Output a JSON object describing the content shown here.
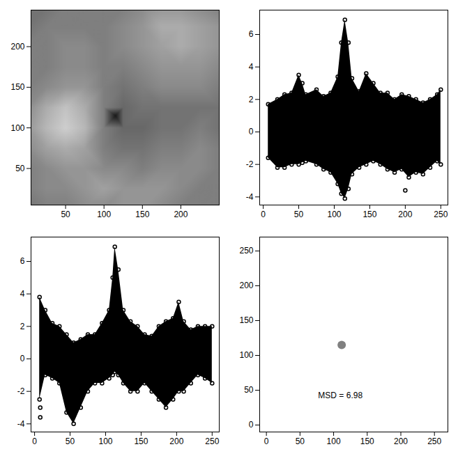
{
  "chart_data": [
    {
      "type": "image",
      "xlim": [
        5,
        250
      ],
      "ylim": [
        5,
        245
      ],
      "xticks": [
        50,
        100,
        150,
        200
      ],
      "yticks": [
        50,
        100,
        150,
        200
      ],
      "zlim": [
        0,
        1
      ],
      "colors": [
        "#0d0d0d",
        "#f0f0f0"
      ],
      "grid_x": [
        0,
        25,
        50,
        75,
        100,
        125,
        150,
        175,
        200,
        225,
        250
      ],
      "grid_y": [
        0,
        25,
        50,
        75,
        100,
        125,
        150,
        175,
        200,
        225,
        250
      ],
      "brightness": [
        [
          0.45,
          0.5,
          0.5,
          0.55,
          0.55,
          0.6,
          0.6,
          0.55,
          0.5,
          0.5,
          0.5
        ],
        [
          0.5,
          0.55,
          0.55,
          0.6,
          0.65,
          0.6,
          0.6,
          0.6,
          0.55,
          0.5,
          0.5
        ],
        [
          0.5,
          0.55,
          0.6,
          0.6,
          0.55,
          0.55,
          0.5,
          0.55,
          0.55,
          0.55,
          0.5
        ],
        [
          0.55,
          0.65,
          0.7,
          0.65,
          0.5,
          0.45,
          0.45,
          0.5,
          0.5,
          0.55,
          0.5
        ],
        [
          0.6,
          0.75,
          0.85,
          0.75,
          0.5,
          0.4,
          0.4,
          0.45,
          0.45,
          0.5,
          0.45
        ],
        [
          0.55,
          0.7,
          0.8,
          0.7,
          0.5,
          0.4,
          0.45,
          0.45,
          0.45,
          0.45,
          0.45
        ],
        [
          0.5,
          0.55,
          0.6,
          0.6,
          0.5,
          0.45,
          0.5,
          0.55,
          0.55,
          0.55,
          0.5
        ],
        [
          0.5,
          0.5,
          0.55,
          0.55,
          0.5,
          0.5,
          0.55,
          0.6,
          0.6,
          0.6,
          0.55
        ],
        [
          0.5,
          0.5,
          0.55,
          0.55,
          0.5,
          0.55,
          0.6,
          0.65,
          0.7,
          0.65,
          0.6
        ],
        [
          0.45,
          0.5,
          0.5,
          0.5,
          0.5,
          0.55,
          0.6,
          0.7,
          0.7,
          0.65,
          0.6
        ],
        [
          0.45,
          0.45,
          0.5,
          0.5,
          0.5,
          0.5,
          0.55,
          0.6,
          0.6,
          0.55,
          0.5
        ]
      ],
      "spot": {
        "x": 115,
        "y": 115,
        "value": 0.05
      }
    },
    {
      "type": "band",
      "color": "#000000",
      "marker": "circle",
      "xlim": [
        -5,
        260
      ],
      "ylim": [
        -4.5,
        7.5
      ],
      "xticks": [
        0,
        50,
        100,
        150,
        200,
        250
      ],
      "yticks": [
        -4,
        -2,
        0,
        2,
        4,
        6
      ],
      "x": [
        7,
        20,
        30,
        40,
        50,
        55,
        60,
        75,
        85,
        95,
        105,
        110,
        115,
        120,
        125,
        135,
        145,
        155,
        165,
        175,
        185,
        195,
        205,
        215,
        225,
        235,
        245,
        250
      ],
      "upper": [
        1.7,
        2.0,
        2.3,
        2.4,
        3.5,
        3.0,
        2.3,
        2.6,
        2.2,
        2.4,
        3.4,
        5.5,
        6.9,
        5.5,
        3.3,
        2.5,
        3.6,
        3.0,
        2.4,
        2.4,
        2.0,
        2.3,
        2.2,
        2.0,
        1.8,
        2.0,
        2.3,
        2.6
      ],
      "lower": [
        -1.6,
        -2.2,
        -2.2,
        -2.0,
        -2.0,
        -1.9,
        -1.8,
        -2.0,
        -2.3,
        -2.5,
        -3.2,
        -3.8,
        -4.1,
        -3.5,
        -2.6,
        -2.2,
        -2.0,
        -1.8,
        -2.0,
        -2.3,
        -2.5,
        -2.3,
        -2.8,
        -2.5,
        -2.6,
        -2.2,
        -1.8,
        -2.0
      ],
      "outliers": {
        "x": [
          200
        ],
        "y": [
          -3.6
        ]
      }
    },
    {
      "type": "band",
      "color": "#000000",
      "marker": "circle",
      "xlim": [
        -5,
        260
      ],
      "ylim": [
        -4.5,
        7.5
      ],
      "xticks": [
        0,
        50,
        100,
        150,
        200,
        250
      ],
      "yticks": [
        -4,
        -2,
        0,
        2,
        4,
        6
      ],
      "x": [
        7,
        15,
        25,
        35,
        45,
        55,
        65,
        75,
        85,
        95,
        105,
        110,
        113,
        118,
        125,
        135,
        145,
        155,
        165,
        175,
        185,
        195,
        203,
        210,
        220,
        230,
        240,
        250
      ],
      "upper": [
        3.8,
        3.0,
        2.2,
        2.0,
        1.5,
        1.0,
        1.2,
        1.5,
        1.5,
        2.2,
        3.0,
        5.0,
        6.9,
        5.5,
        3.0,
        2.3,
        2.0,
        1.5,
        1.4,
        2.0,
        2.3,
        2.5,
        3.5,
        2.3,
        1.8,
        2.0,
        2.0,
        2.0
      ],
      "lower": [
        -2.5,
        -1.0,
        -1.2,
        -1.5,
        -3.3,
        -4.0,
        -3.0,
        -2.0,
        -1.5,
        -1.5,
        -1.2,
        -1.0,
        -0.8,
        -1.0,
        -1.5,
        -2.0,
        -2.0,
        -1.5,
        -2.0,
        -2.5,
        -3.0,
        -2.5,
        -2.0,
        -2.0,
        -1.5,
        -1.0,
        -1.2,
        -1.5
      ],
      "outliers": {
        "x": [
          8,
          8
        ],
        "y": [
          -3.6,
          -3.0
        ]
      }
    },
    {
      "type": "scatter",
      "color": "#808080",
      "marker": "circle",
      "xlim": [
        -10,
        270
      ],
      "ylim": [
        -10,
        270
      ],
      "xticks": [
        0,
        50,
        100,
        150,
        200,
        250
      ],
      "yticks": [
        0,
        50,
        100,
        150,
        200,
        250
      ],
      "x": [
        112
      ],
      "values": [
        115
      ],
      "annotation": {
        "text": "MSD = 6.98",
        "x": 110,
        "y": 42
      }
    }
  ]
}
